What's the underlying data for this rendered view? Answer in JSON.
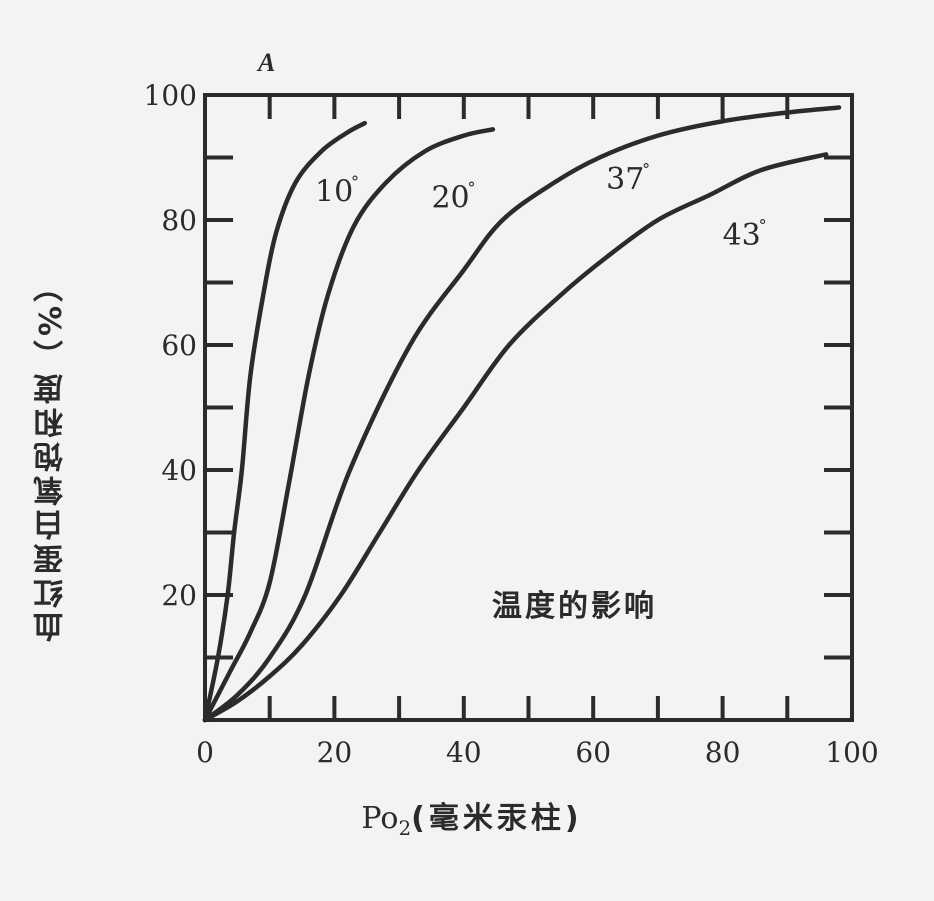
{
  "figure": {
    "panel_letter": "A",
    "annotation": "温度的影响",
    "ylabel": "血红蛋白氧饱和度（%）",
    "xlabel_prefix": "Po",
    "xlabel_sub": "2",
    "xlabel_suffix": "(毫米汞柱)"
  },
  "colors": {
    "background": "#f3f3f1",
    "ink": "#2b2b2b"
  },
  "chart_data": {
    "type": "line",
    "title": "温度的影响",
    "xlabel": "Po2(毫米汞柱)",
    "ylabel": "血红蛋白氧饱和度（%）",
    "xlim": [
      0,
      100
    ],
    "ylim": [
      0,
      100
    ],
    "xticks": [
      0,
      20,
      40,
      60,
      80,
      100
    ],
    "yticks": [
      20,
      40,
      60,
      80,
      100
    ],
    "minor_tick_step": 10,
    "grid": false,
    "legend": "inline labels on curves",
    "series": [
      {
        "name": "10°",
        "label": "10°",
        "label_pos": [
          17,
          83
        ],
        "x": [
          0,
          2,
          3.5,
          4.5,
          5.7,
          7,
          9,
          11,
          14,
          18,
          22,
          24.7
        ],
        "y": [
          0,
          10,
          20,
          30,
          40,
          55,
          68,
          78,
          86,
          91,
          94,
          95.5
        ]
      },
      {
        "name": "20°",
        "label": "20°",
        "label_pos": [
          35,
          82
        ],
        "x": [
          0,
          4,
          7,
          10,
          13,
          16,
          19,
          23,
          28,
          34,
          40,
          44.5
        ],
        "y": [
          0,
          8,
          14,
          22,
          38,
          55,
          68,
          79,
          86,
          91,
          93.5,
          94.5
        ]
      },
      {
        "name": "37°",
        "label": "37°",
        "label_pos": [
          62,
          85
        ],
        "x": [
          0,
          5,
          10,
          15.5,
          22.4,
          31.7,
          40,
          46,
          54,
          61,
          70,
          80,
          90,
          98
        ],
        "y": [
          0,
          4,
          10,
          20,
          40,
          60,
          72,
          80,
          86,
          90,
          93.5,
          95.8,
          97.2,
          98
        ]
      },
      {
        "name": "43°",
        "label": "43°",
        "label_pos": [
          80,
          76
        ],
        "x": [
          0,
          5,
          10,
          15,
          21,
          27,
          33,
          40,
          47,
          55,
          62,
          70,
          78,
          86,
          96
        ],
        "y": [
          0,
          3,
          7,
          12,
          20,
          30,
          40,
          50,
          60,
          68,
          74,
          80,
          84,
          88,
          90.5
        ]
      }
    ]
  }
}
